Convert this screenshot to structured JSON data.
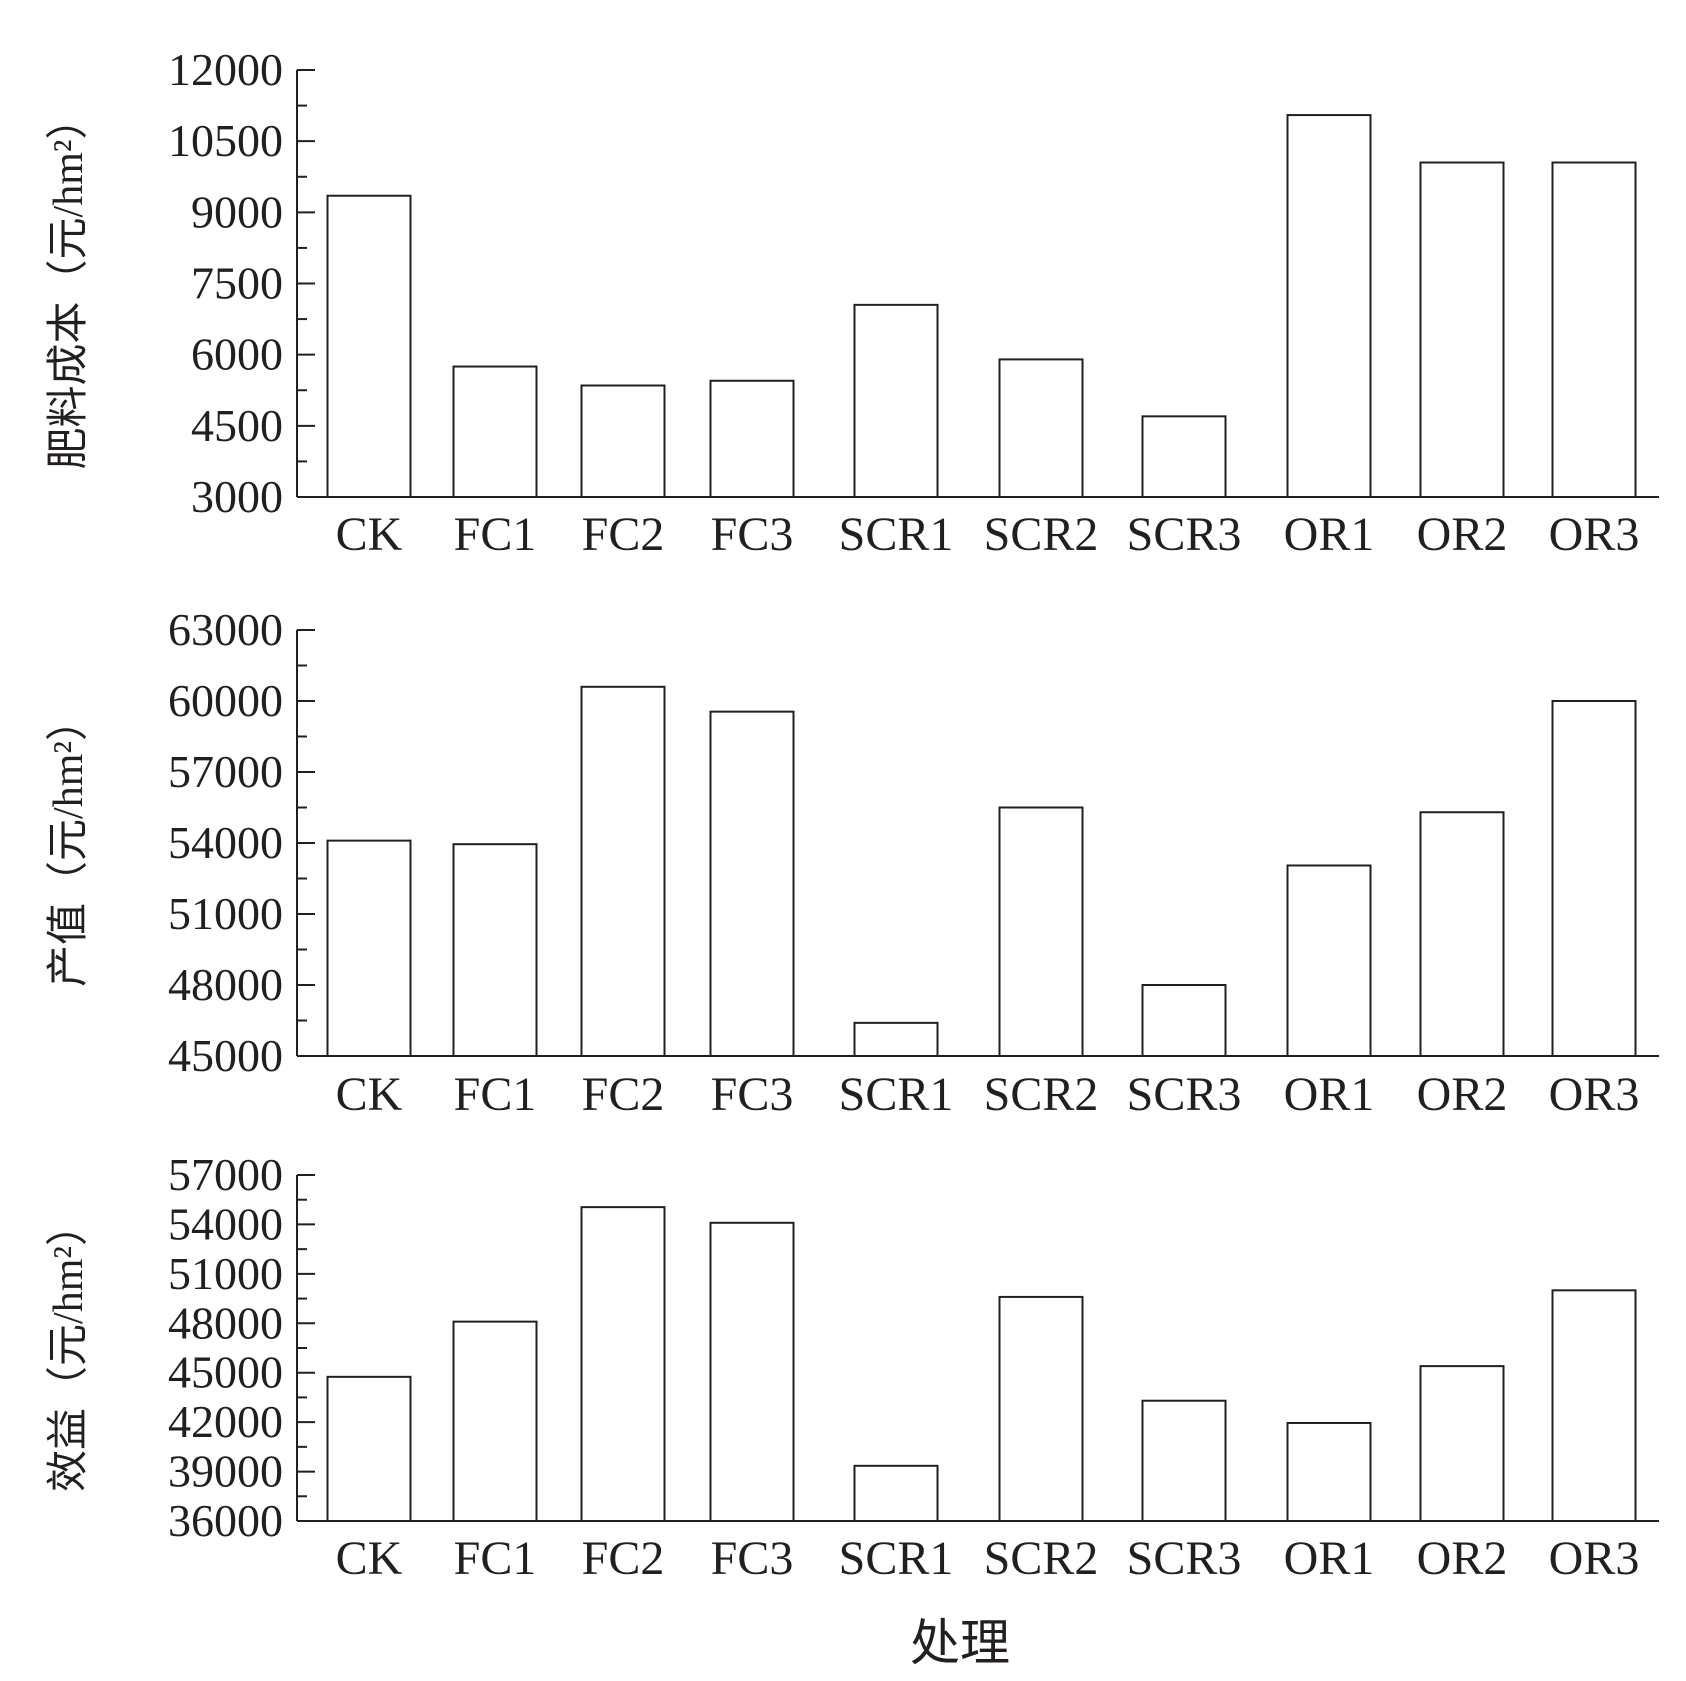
{
  "colors": {
    "bar_fill": "#ffffff",
    "stroke": "#231f20",
    "text": "#231f20"
  },
  "xlabel": "处理",
  "chart_data": [
    {
      "type": "bar",
      "categories": [
        "CK",
        "FC1",
        "FC2",
        "FC3",
        "SCR1",
        "SCR2",
        "SCR3",
        "OR1",
        "OR2",
        "OR3"
      ],
      "series": [
        {
          "values": [
            9350,
            5750,
            5350,
            5450,
            7050,
            5900,
            4700,
            11050,
            10050,
            10050
          ]
        }
      ],
      "ylabel": "肥料成本（元/hm²）",
      "ylim": [
        3000,
        12000
      ],
      "yticks": [
        3000,
        4500,
        6000,
        7500,
        9000,
        10500,
        12000
      ],
      "ytick_labels": [
        "3000",
        "4500",
        "6000",
        "7500",
        "9000",
        "10500",
        "12000"
      ],
      "grid": false
    },
    {
      "type": "bar",
      "categories": [
        "CK",
        "FC1",
        "FC2",
        "FC3",
        "SCR1",
        "SCR2",
        "SCR3",
        "OR1",
        "OR2",
        "OR3"
      ],
      "series": [
        {
          "values": [
            54100,
            53950,
            60600,
            59550,
            46400,
            55500,
            48000,
            53050,
            55300,
            60000
          ]
        }
      ],
      "ylabel": "产值（元/hm²）",
      "ylim": [
        45000,
        63000
      ],
      "yticks": [
        45000,
        48000,
        51000,
        54000,
        57000,
        60000,
        63000
      ],
      "ytick_labels": [
        "45000",
        "48000",
        "51000",
        "54000",
        "57000",
        "60000",
        "63000"
      ],
      "grid": false
    },
    {
      "type": "bar",
      "categories": [
        "CK",
        "FC1",
        "FC2",
        "FC3",
        "SCR1",
        "SCR2",
        "SCR3",
        "OR1",
        "OR2",
        "OR3"
      ],
      "series": [
        {
          "values": [
            44750,
            48100,
            55050,
            54100,
            39350,
            49600,
            43300,
            41950,
            45400,
            50000
          ]
        }
      ],
      "ylabel": "效益（元/hm²）",
      "ylim": [
        36000,
        57000
      ],
      "yticks": [
        36000,
        39000,
        42000,
        45000,
        48000,
        51000,
        54000,
        57000
      ],
      "ytick_labels": [
        "36000",
        "39000",
        "42000",
        "45000",
        "48000",
        "51000",
        "54000",
        "57000"
      ],
      "grid": false
    }
  ]
}
